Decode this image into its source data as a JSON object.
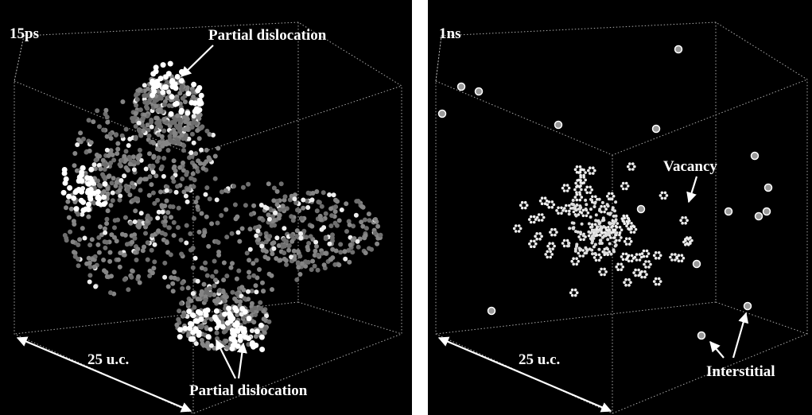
{
  "panels": [
    {
      "label": "15ps",
      "annotations": [
        "Partial dislocation",
        "Partial dislocation"
      ],
      "scale": "25 u.c."
    },
    {
      "label": "1ns",
      "annotations": [
        "Vacancy",
        "Interstitial"
      ],
      "scale": "25 u.c."
    }
  ]
}
